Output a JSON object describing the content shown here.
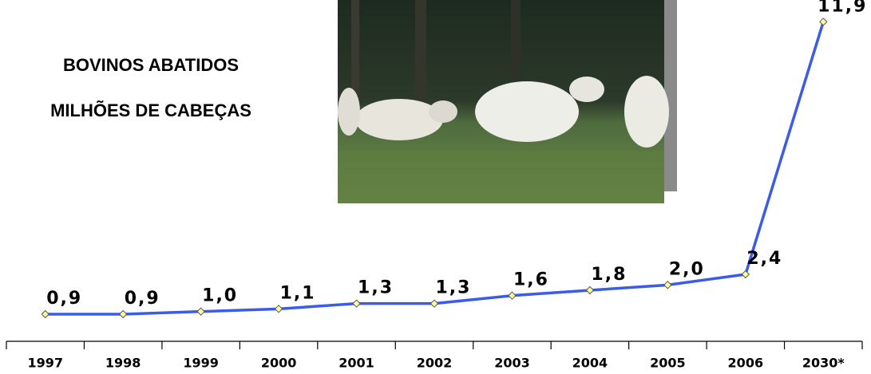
{
  "chart_data": {
    "type": "line",
    "title": "BOVINOS ABATIDOS",
    "subtitle": "MILHÕES DE CABEÇAS",
    "categories": [
      "1997",
      "1998",
      "1999",
      "2000",
      "2001",
      "2002",
      "2003",
      "2004",
      "2005",
      "2006",
      "2030*"
    ],
    "values": [
      0.9,
      0.9,
      1.0,
      1.1,
      1.3,
      1.3,
      1.6,
      1.8,
      2.0,
      2.4,
      11.9
    ],
    "value_labels": [
      "0,9",
      "0,9",
      "1,0",
      "1,1",
      "1,3",
      "1,3",
      "1,6",
      "1,8",
      "2,0",
      "2,4",
      "11,9"
    ],
    "color": "#3b5bea",
    "marker_color": "#ffff99",
    "ylim": [
      0,
      12
    ]
  }
}
